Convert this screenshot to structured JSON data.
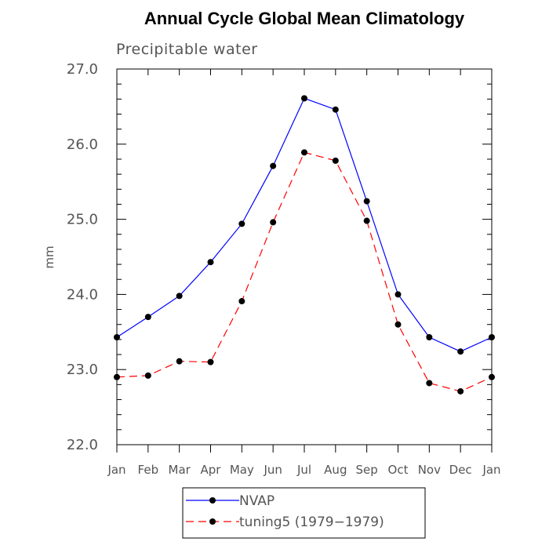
{
  "chart_data": {
    "type": "line",
    "title": "Annual Cycle Global Mean Climatology",
    "subtitle": "Precipitable water",
    "xlabel": "",
    "ylabel": "mm",
    "categories": [
      "Jan",
      "Feb",
      "Mar",
      "Apr",
      "May",
      "Jun",
      "Jul",
      "Aug",
      "Sep",
      "Oct",
      "Nov",
      "Dec",
      "Jan"
    ],
    "ylim": [
      22.0,
      27.0
    ],
    "yticks": [
      "22.0",
      "23.0",
      "24.0",
      "25.0",
      "26.0",
      "27.0"
    ],
    "grid": false,
    "legend_position": "bottom-center",
    "series": [
      {
        "name": "NVAP",
        "color": "#0000ff",
        "dash": "solid",
        "marker": "filled-circle",
        "values": [
          23.43,
          23.7,
          23.98,
          24.43,
          24.94,
          25.71,
          26.61,
          26.46,
          25.24,
          24.0,
          23.43,
          23.24,
          23.43
        ]
      },
      {
        "name": "tuning5 (1979−1979)",
        "color": "#ff0000",
        "dash": "dashed",
        "marker": "filled-circle",
        "values": [
          22.9,
          22.92,
          23.11,
          23.1,
          23.91,
          24.96,
          25.89,
          25.78,
          24.98,
          23.6,
          22.82,
          22.71,
          22.9
        ]
      }
    ]
  }
}
